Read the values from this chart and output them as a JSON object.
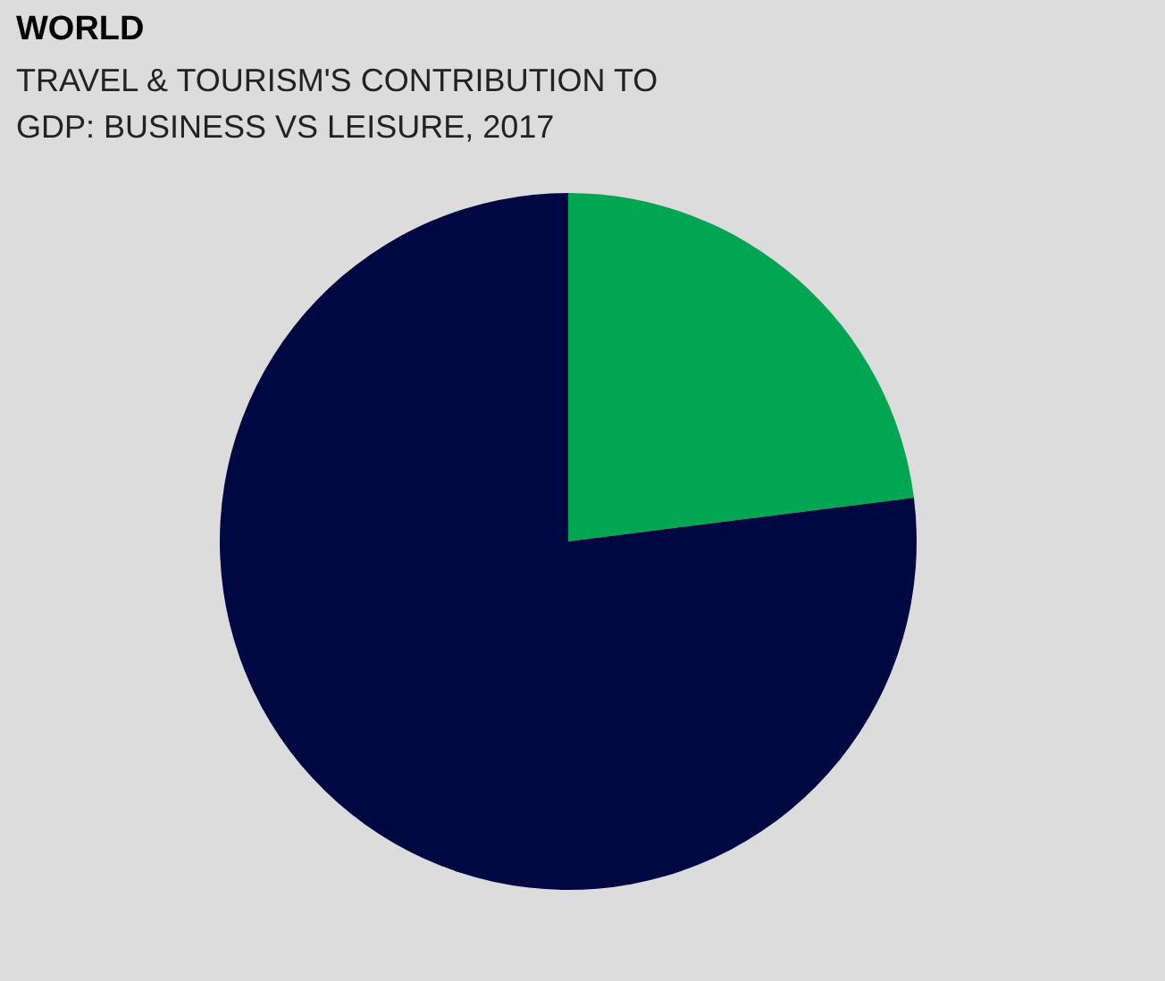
{
  "chart_data": {
    "type": "pie",
    "title": "WORLD",
    "subtitle": "TRAVEL & TOURISM'S CONTRIBUTION TO GDP: BUSINESS VS LEISURE, 2017",
    "categories": [
      null,
      null
    ],
    "values": [
      23,
      77
    ],
    "colors": [
      "#00a651",
      "#000842"
    ]
  }
}
